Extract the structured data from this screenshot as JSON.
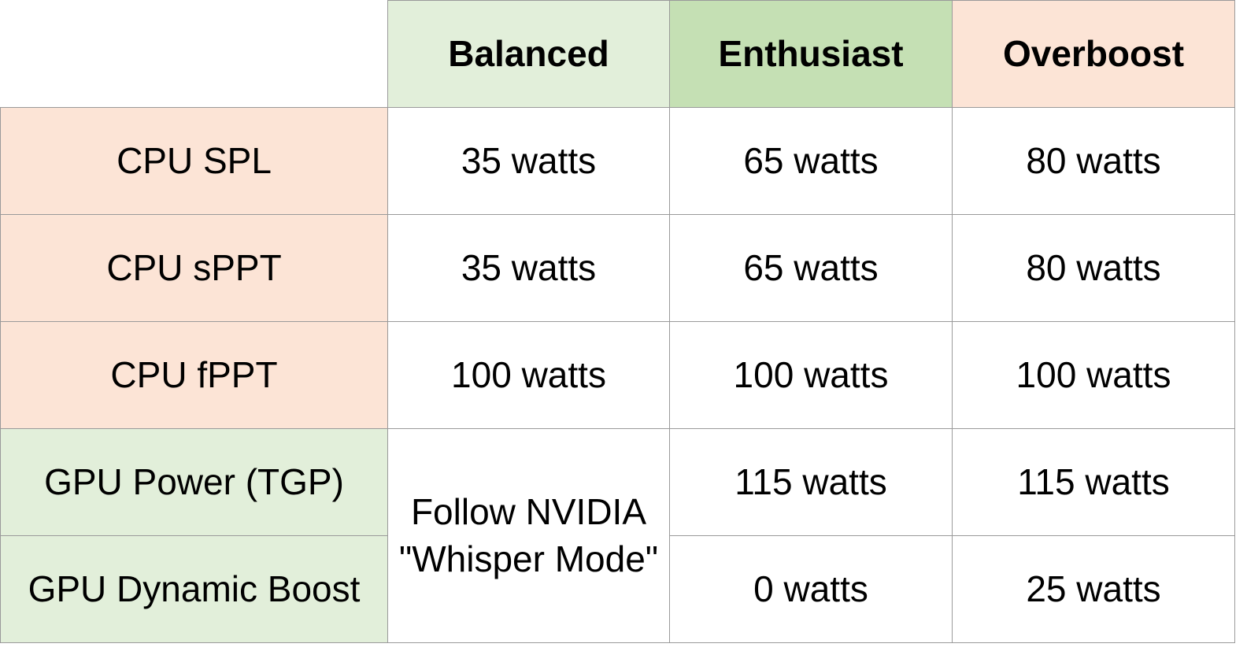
{
  "colors": {
    "light_green": "#e2efda",
    "green": "#c5e0b4",
    "peach": "#fce4d6",
    "grid": "#9a9a9a"
  },
  "columns": [
    "Balanced",
    "Enthusiast",
    "Overboost"
  ],
  "rows": [
    {
      "label": "CPU SPL",
      "values": [
        "35 watts",
        "65 watts",
        "80 watts"
      ]
    },
    {
      "label": "CPU sPPT",
      "values": [
        "35 watts",
        "65 watts",
        "80 watts"
      ]
    },
    {
      "label": "CPU fPPT",
      "values": [
        "100 watts",
        "100 watts",
        "100 watts"
      ]
    },
    {
      "label": "GPU Power (TGP)",
      "values": [
        "115 watts",
        "115 watts"
      ]
    },
    {
      "label": "GPU Dynamic Boost",
      "values": [
        "0 watts",
        "25 watts"
      ]
    }
  ],
  "merged_cell": {
    "line1": "Follow NVIDIA",
    "line2": "\"Whisper Mode\""
  }
}
